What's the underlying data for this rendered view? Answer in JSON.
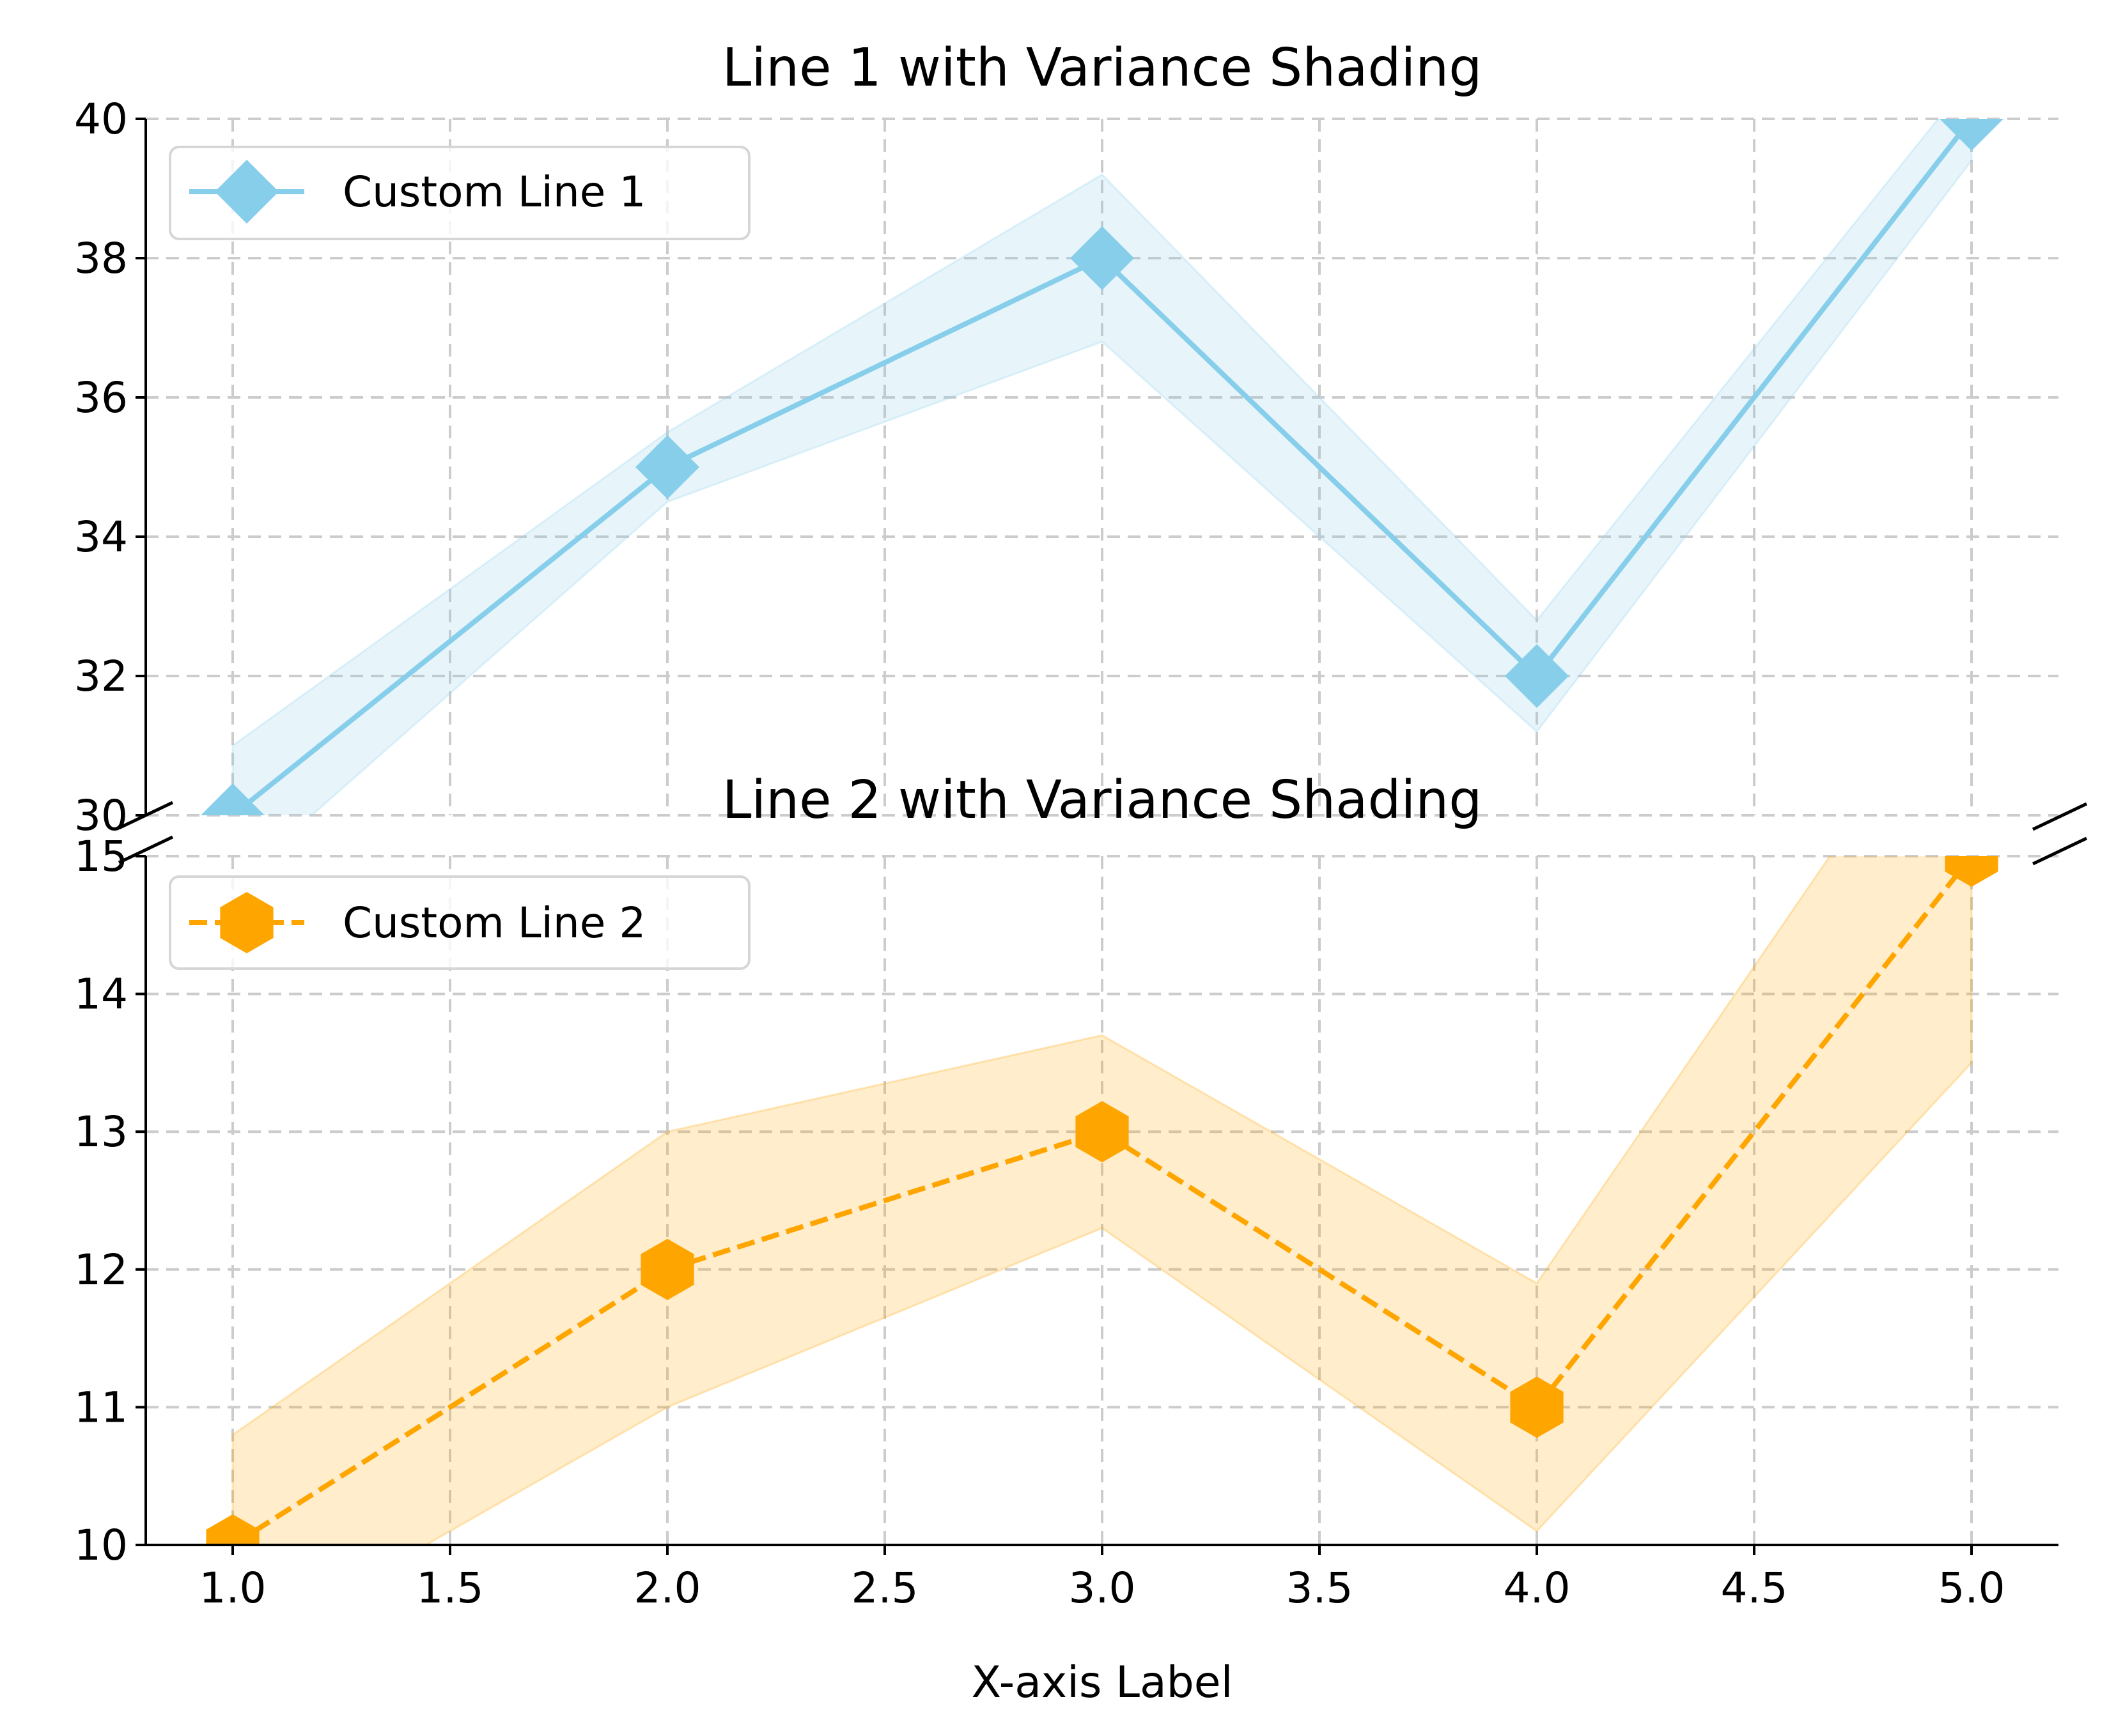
{
  "chart_data": [
    {
      "type": "line",
      "title": "Line 1 with Variance Shading",
      "xlabel": "",
      "ylabel": "",
      "xlim": [
        0.8,
        5.2
      ],
      "ylim": [
        30,
        40
      ],
      "yticks": [
        30,
        32,
        34,
        36,
        38,
        40
      ],
      "grid": true,
      "legend_position": "top-left",
      "x": [
        1,
        2,
        3,
        4,
        5
      ],
      "series": [
        {
          "name": "Custom Line 1",
          "values": [
            30,
            35,
            38,
            32,
            40
          ],
          "variance": [
            1.0,
            0.5,
            1.2,
            0.8,
            0.6
          ],
          "color": "#87ceeb",
          "line_style": "solid",
          "marker": "diamond"
        }
      ]
    },
    {
      "type": "line",
      "title": "Line 2 with Variance Shading",
      "xlabel": "X-axis Label",
      "ylabel": "",
      "xlim": [
        0.8,
        5.2
      ],
      "ylim": [
        10,
        15
      ],
      "yticks": [
        10,
        11,
        12,
        13,
        14,
        15
      ],
      "xticks": [
        1.0,
        1.5,
        2.0,
        2.5,
        3.0,
        3.5,
        4.0,
        4.5,
        5.0
      ],
      "grid": true,
      "legend_position": "top-left",
      "x": [
        1,
        2,
        3,
        4,
        5
      ],
      "series": [
        {
          "name": "Custom Line 2",
          "values": [
            10,
            12,
            13,
            11,
            15
          ],
          "variance": [
            0.8,
            1.0,
            0.7,
            0.9,
            1.5
          ],
          "color": "#ffa500",
          "line_style": "dashed",
          "marker": "hexagon"
        }
      ]
    }
  ]
}
